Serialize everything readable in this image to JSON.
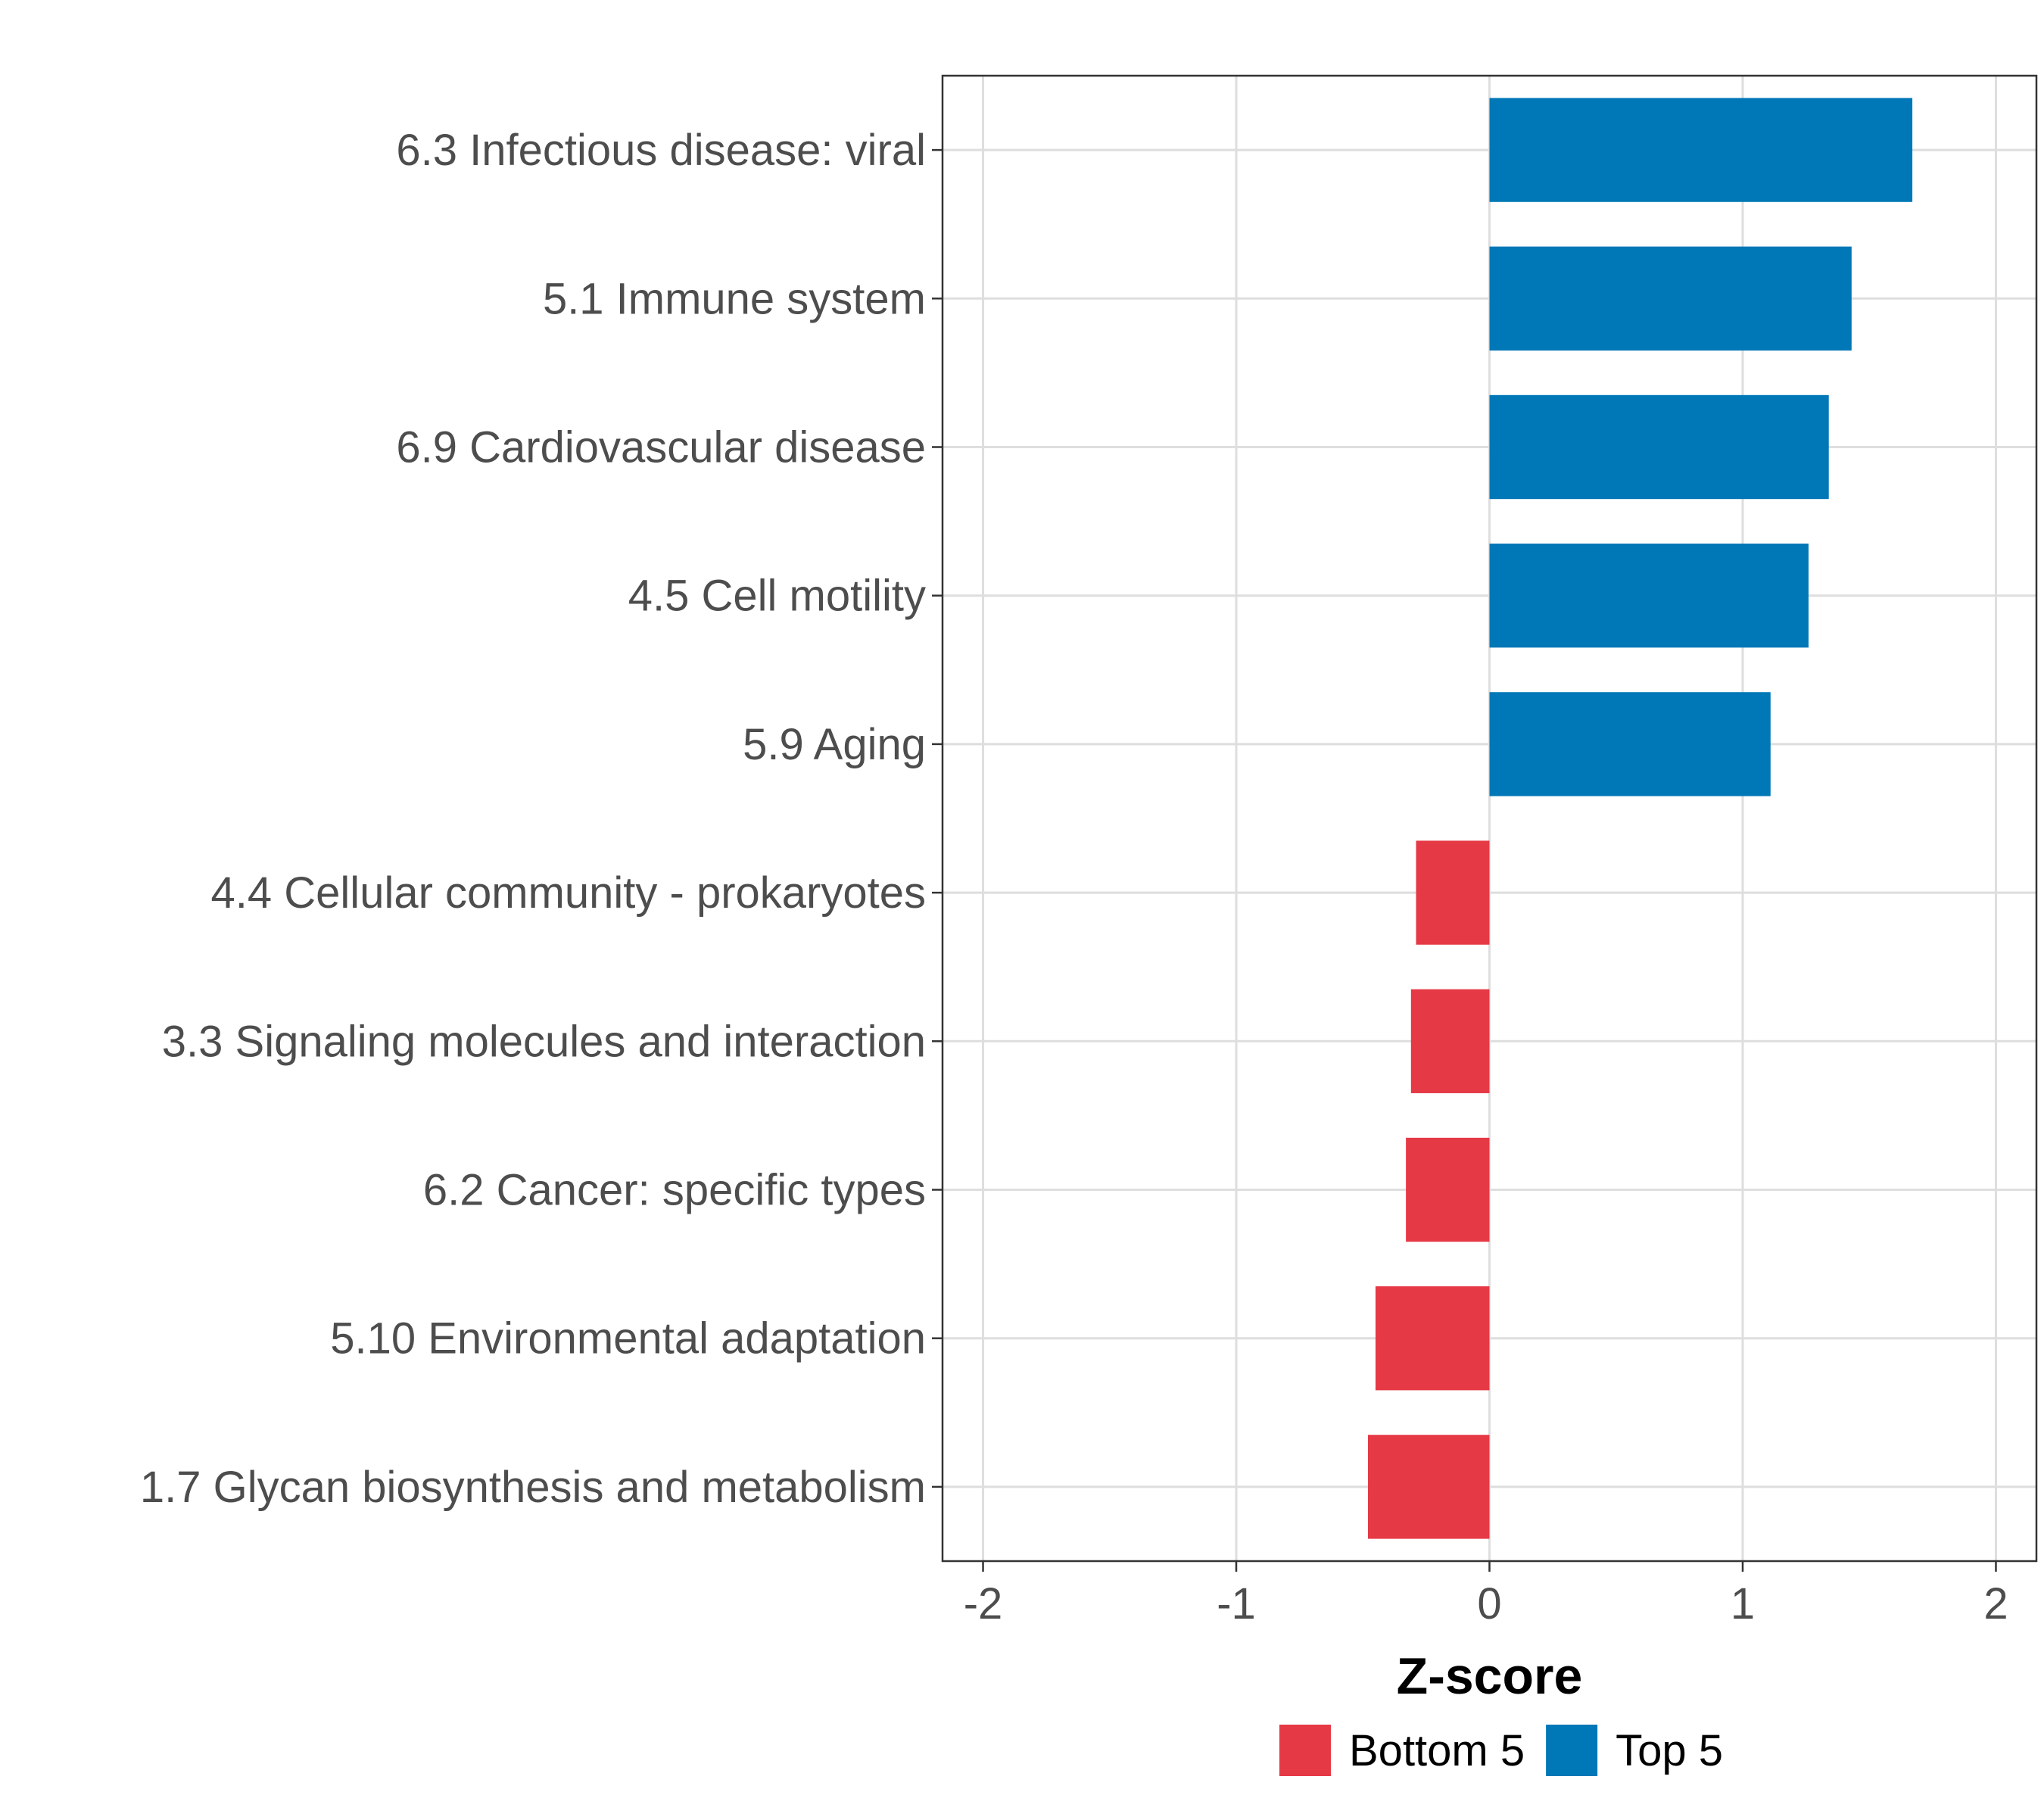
{
  "chart_data": {
    "type": "bar",
    "orientation": "horizontal",
    "categories": [
      "6.3 Infectious disease: viral",
      "5.1 Immune system",
      "6.9 Cardiovascular disease",
      "4.5 Cell motility",
      "5.9 Aging",
      "4.4 Cellular community - prokaryotes",
      "3.3 Signaling molecules and interaction",
      "6.2 Cancer: specific types",
      "5.10 Environmental adaptation",
      "1.7 Glycan biosynthesis and metabolism"
    ],
    "values": [
      1.67,
      1.43,
      1.34,
      1.26,
      1.11,
      -0.29,
      -0.31,
      -0.33,
      -0.45,
      -0.48
    ],
    "groups": [
      "Top 5",
      "Top 5",
      "Top 5",
      "Top 5",
      "Top 5",
      "Bottom 5",
      "Bottom 5",
      "Bottom 5",
      "Bottom 5",
      "Bottom 5"
    ],
    "xlabel": "Z-score",
    "ylabel": "",
    "xlim": [
      -2.16,
      2.16
    ],
    "xticks": [
      -2,
      -1,
      0,
      1,
      2
    ],
    "xtick_labels": [
      "-2",
      "-1",
      "0",
      "1",
      "2"
    ],
    "grid": true,
    "legend": {
      "position": "bottom",
      "entries": [
        {
          "label": "Bottom 5",
          "color": "#e63946"
        },
        {
          "label": "Top 5",
          "color": "#0077b6"
        }
      ]
    },
    "colors": {
      "Bottom 5": "#e63946",
      "Top 5": "#0077b6"
    }
  }
}
